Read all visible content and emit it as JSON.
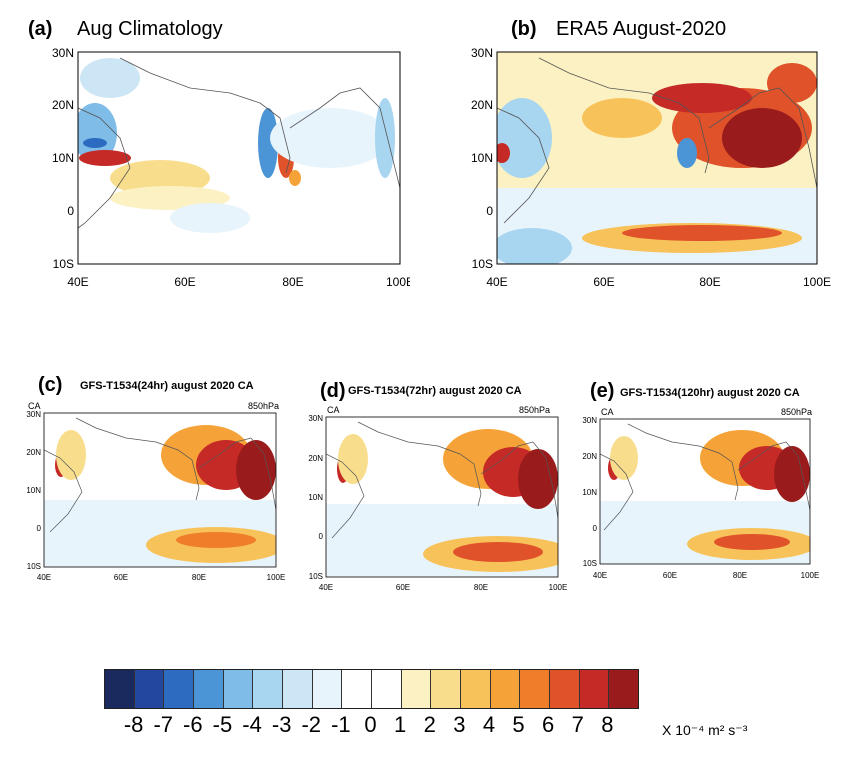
{
  "panels": [
    {
      "letter": "(a)",
      "title": "Aug Climatology",
      "lat_labels": [
        "30N",
        "20N",
        "10N",
        "0",
        "10S"
      ],
      "lon_labels": [
        "40E",
        "60E",
        "80E",
        "100E"
      ]
    },
    {
      "letter": "(b)",
      "title": "ERA5 August-2020",
      "lat_labels": [
        "30N",
        "20N",
        "10N",
        "0",
        "10S"
      ],
      "lon_labels": [
        "40E",
        "60E",
        "80E",
        "100E"
      ]
    },
    {
      "letter": "(c)",
      "title": "GFS-T1534(24hr) august 2020 CA",
      "left_tag": "CA",
      "right_tag": "850hPa",
      "lat_labels": [
        "30N",
        "20N",
        "10N",
        "0",
        "10S"
      ],
      "lon_labels": [
        "40E",
        "60E",
        "80E",
        "100E"
      ]
    },
    {
      "letter": "(d)",
      "title": "GFS-T1534(72hr) august 2020 CA",
      "left_tag": "CA",
      "right_tag": "850hPa",
      "lat_labels": [
        "30N",
        "20N",
        "10N",
        "0",
        "10S"
      ],
      "lon_labels": [
        "40E",
        "60E",
        "80E",
        "100E"
      ]
    },
    {
      "letter": "(e)",
      "title": "GFS-T1534(120hr) august 2020 CA",
      "left_tag": "CA",
      "right_tag": "850hPa",
      "lat_labels": [
        "30N",
        "20N",
        "10N",
        "0",
        "10S"
      ],
      "lon_labels": [
        "40E",
        "60E",
        "80E",
        "100E"
      ]
    }
  ],
  "colorbar": {
    "colors": [
      "#1b2a5e",
      "#23479c",
      "#2c6bc0",
      "#4b95d6",
      "#7fbde8",
      "#a8d5f0",
      "#cce6f5",
      "#e8f4fb",
      "#ffffff",
      "#ffffff",
      "#fcf1c2",
      "#f8de8c",
      "#f8c25a",
      "#f5a338",
      "#ef7d2a",
      "#e0522a",
      "#c52a27",
      "#9a1b1b"
    ],
    "ticks": [
      "-8",
      "-7",
      "-6",
      "-5",
      "-4",
      "-3",
      "-2",
      "-1",
      "0",
      "1",
      "2",
      "3",
      "4",
      "5",
      "6",
      "7",
      "8"
    ],
    "units": "X 10⁻⁴ m² s⁻³"
  }
}
